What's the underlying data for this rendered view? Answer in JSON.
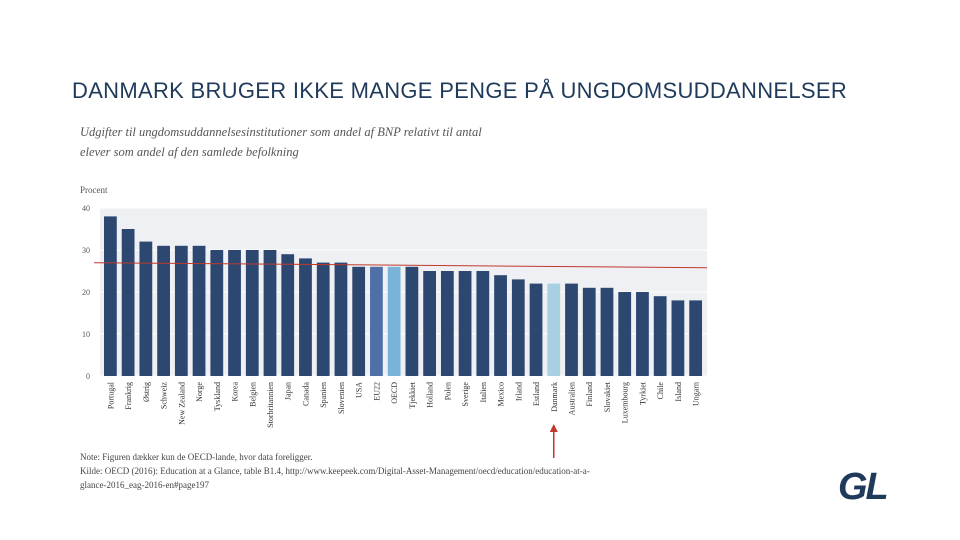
{
  "slide": {
    "title": "DANMARK BRUGER IKKE MANGE PENGE PÅ UNGDOMSUDDANNELSER",
    "logo": "GL"
  },
  "chart_data": {
    "type": "bar",
    "title_line1": "Udgifter til ungdomsuddannelsesinstitutioner som andel af BNP relativt til antal",
    "title_line2": "elever som andel af den samlede befolkning",
    "ylabel": "Procent",
    "ylim": [
      0,
      40
    ],
    "yticks": [
      0,
      10,
      20,
      30,
      40
    ],
    "grid": true,
    "categories": [
      "Portugal",
      "Frankrig",
      "Østrig",
      "Schweiz",
      "New Zealand",
      "Norge",
      "Tyskland",
      "Korea",
      "Belgien",
      "Storbritannien",
      "Japan",
      "Canada",
      "Spanien",
      "Slovenien",
      "USA",
      "EU22",
      "OECD",
      "Tjekkiet",
      "Holland",
      "Polen",
      "Sverige",
      "Italien",
      "Mexico",
      "Irland",
      "Estland",
      "Danmark",
      "Australien",
      "Finland",
      "Slovakiet",
      "Luxembourg",
      "Tyrkiet",
      "Chile",
      "Island",
      "Ungarn"
    ],
    "values": [
      38,
      35,
      32,
      31,
      31,
      31,
      30,
      30,
      30,
      30,
      29,
      28,
      27,
      27,
      26,
      26,
      26,
      26,
      25,
      25,
      25,
      25,
      24,
      23,
      22,
      22,
      22,
      21,
      21,
      20,
      20,
      19,
      18,
      18
    ],
    "colors": {
      "default": "#2c4870",
      "EU22": "#4f6fa8",
      "OECD": "#7ab3d8",
      "Danmark": "#a9d0e2",
      "reference_line": "#c0392b",
      "arrow": "#c0392b"
    },
    "reference_line_value": 26.5,
    "highlight": "Danmark",
    "note": "Note: Figuren dækker kun de OECD-lande, hvor data foreligger.",
    "source_line1": "Kilde: OECD (2016): Education at a Glance, table B1.4, http://www.keepeek.com/Digital-Asset-Management/oecd/education/education-at-a-",
    "source_line2": "glance-2016_eag-2016-en#page197"
  }
}
